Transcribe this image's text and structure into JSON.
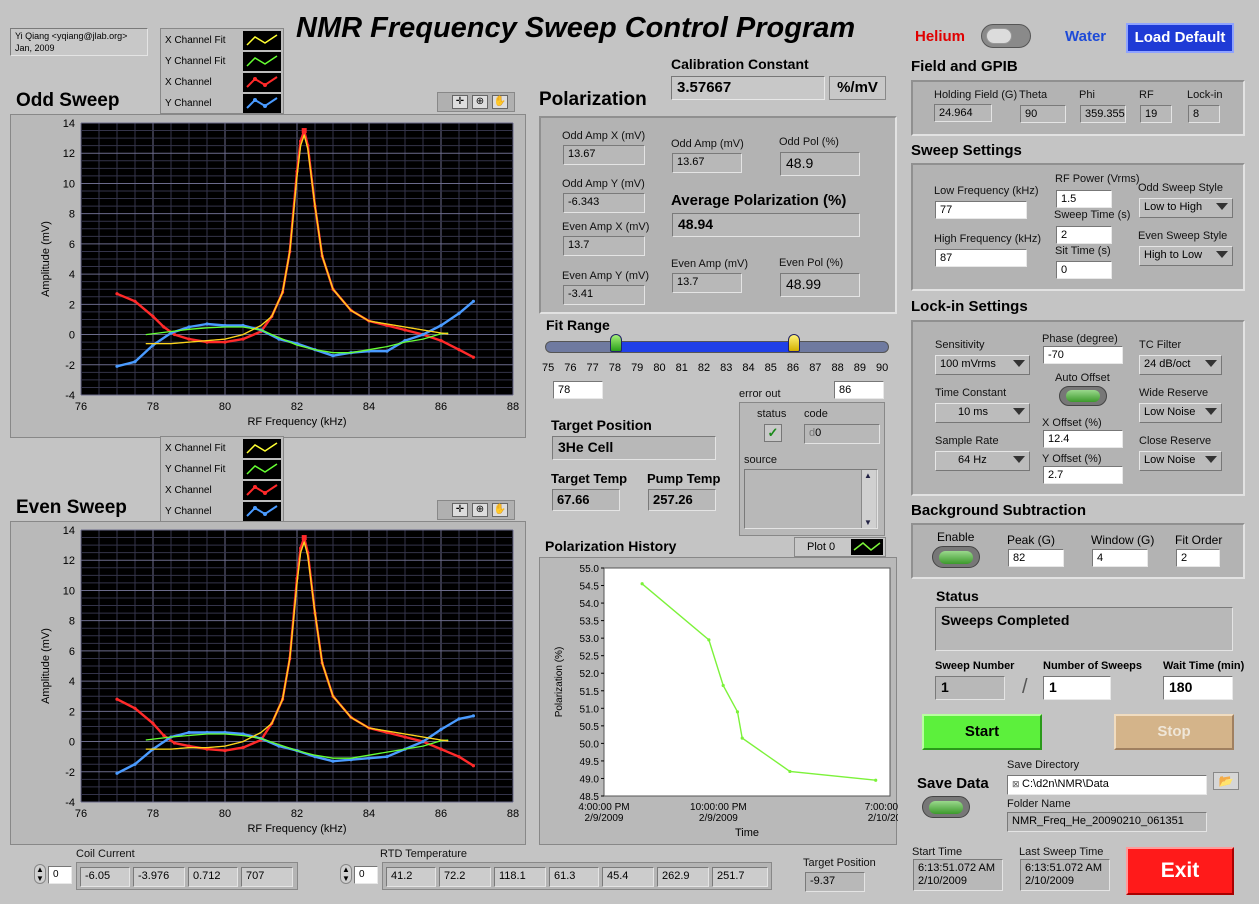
{
  "app": {
    "title": "NMR Frequency Sweep Control Program",
    "author": "Yi Qiang <yqiang@jlab.org>",
    "date": "Jan, 2009",
    "helium_label": "Helium",
    "water_label": "Water",
    "load_default": "Load Default"
  },
  "odd_sweep": {
    "title": "Odd Sweep",
    "legend": [
      "X Channel Fit",
      "Y Channel Fit",
      "X Channel",
      "Y Channel"
    ],
    "xlabel": "RF Frequency (kHz)",
    "ylabel": "Amplitude (mV)"
  },
  "even_sweep": {
    "title": "Even Sweep",
    "legend": [
      "X Channel Fit",
      "Y Channel Fit",
      "X Channel",
      "Y Channel"
    ],
    "xlabel": "RF Frequency (kHz)",
    "ylabel": "Amplitude (mV)"
  },
  "calibration": {
    "label": "Calibration Constant",
    "value": "3.57667",
    "unit": "%/mV"
  },
  "polarization": {
    "title": "Polarization",
    "odd_amp_x_label": "Odd Amp X (mV)",
    "odd_amp_x": "13.67",
    "odd_amp_y_label": "Odd Amp Y (mV)",
    "odd_amp_y": "-6.343",
    "even_amp_x_label": "Even Amp X (mV)",
    "even_amp_x": "13.7",
    "even_amp_y_label": "Even Amp Y (mV)",
    "even_amp_y": "-3.41",
    "odd_amp_label": "Odd Amp (mV)",
    "odd_amp": "13.67",
    "odd_pol_label": "Odd Pol (%)",
    "odd_pol": "48.9",
    "avg_label": "Average Polarization (%)",
    "avg": "48.94",
    "even_amp_label": "Even Amp (mV)",
    "even_amp": "13.7",
    "even_pol_label": "Even Pol (%)",
    "even_pol": "48.99"
  },
  "fit_range": {
    "label": "Fit Range",
    "ticks": [
      "75",
      "76",
      "77",
      "78",
      "79",
      "80",
      "81",
      "82",
      "83",
      "84",
      "85",
      "86",
      "87",
      "88",
      "89",
      "90"
    ],
    "low": "78",
    "high": "86",
    "low_value": 78,
    "high_value": 86
  },
  "error_out": {
    "label": "error out",
    "status_label": "status",
    "code_label": "code",
    "code": "0",
    "source_label": "source",
    "status_check": "✓",
    "code_prefix": "d"
  },
  "target": {
    "position_label": "Target Position",
    "position": "3He Cell",
    "temp_label": "Target Temp",
    "temp": "67.66",
    "pump_label": "Pump Temp",
    "pump": "257.26"
  },
  "history": {
    "title": "Polarization History",
    "plot_label": "Plot 0",
    "ylabel": "Polarization (%)",
    "xlabel": "Time",
    "yticks": [
      "55.0",
      "54.5",
      "54.0",
      "53.5",
      "53.0",
      "52.5",
      "52.0",
      "51.5",
      "51.0",
      "50.5",
      "50.0",
      "49.5",
      "49.0",
      "48.5"
    ],
    "xticks": [
      {
        "time": "4:00:00 PM",
        "date": "2/9/2009"
      },
      {
        "time": "10:00:00 PM",
        "date": "2/9/2009"
      },
      {
        "time": "7:00:00 AM",
        "date": "2/10/2009"
      }
    ]
  },
  "field_gpib": {
    "title": "Field and GPIB",
    "holding_label": "Holding Field (G)",
    "holding": "24.964",
    "theta_label": "Theta",
    "theta": "90",
    "phi_label": "Phi",
    "phi": "359.355",
    "rf_label": "RF",
    "rf": "19",
    "lockin_label": "Lock-in",
    "lockin": "8"
  },
  "sweep_settings": {
    "title": "Sweep Settings",
    "low_label": "Low Frequency (kHz)",
    "low": "77",
    "high_label": "High Frequency (kHz)",
    "high": "87",
    "rf_power_label": "RF Power (Vrms)",
    "rf_power": "1.5",
    "sweep_time_label": "Sweep Time (s)",
    "sweep_time": "2",
    "sit_time_label": "Sit Time (s)",
    "sit_time": "0",
    "odd_style_label": "Odd Sweep Style",
    "odd_style": "Low to High",
    "even_style_label": "Even Sweep Style",
    "even_style": "High to Low"
  },
  "lockin": {
    "title": "Lock-in Settings",
    "sensitivity_label": "Sensitivity",
    "sensitivity": "100 mVrms",
    "phase_label": "Phase (degree)",
    "phase": "-70",
    "tc_filter_label": "TC Filter",
    "tc_filter": "24 dB/oct",
    "auto_offset_label": "Auto Offset",
    "time_const_label": "Time Constant",
    "time_const": "10 ms",
    "x_offset_label": "X Offset (%)",
    "x_offset": "12.4",
    "wide_label": "Wide Reserve",
    "wide": "Low Noise",
    "sample_rate_label": "Sample Rate",
    "sample_rate": "64 Hz",
    "y_offset_label": "Y Offset (%)",
    "y_offset": "2.7",
    "close_label": "Close Reserve",
    "close": "Low Noise"
  },
  "background": {
    "title": "Background Subtraction",
    "enable_label": "Enable",
    "peak_label": "Peak (G)",
    "peak": "82",
    "window_label": "Window (G)",
    "window": "4",
    "fit_order_label": "Fit Order",
    "fit_order": "2"
  },
  "status": {
    "label": "Status",
    "text": "Sweeps Completed",
    "sweep_num_label": "Sweep Number",
    "sweep_num": "1",
    "num_sweeps_label": "Number of Sweeps",
    "num_sweeps": "1",
    "wait_label": "Wait Time (min)",
    "wait": "180",
    "start": "Start",
    "stop": "Stop"
  },
  "save": {
    "label": "Save Data",
    "dir_label": "Save Directory",
    "dir": "C:\\d2n\\NMR\\Data",
    "folder_label": "Folder Name",
    "folder": "NMR_Freq_He_20090210_061351"
  },
  "times": {
    "start_label": "Start Time",
    "start_time": "6:13:51.072 AM",
    "start_date": "2/10/2009",
    "last_label": "Last Sweep Time",
    "last_time": "6:13:51.072 AM",
    "last_date": "2/10/2009"
  },
  "exit": "Exit",
  "coil": {
    "label": "Coil Current",
    "index": "0",
    "values": [
      "-6.05",
      "-3.976",
      "0.712",
      "707"
    ]
  },
  "rtd": {
    "label": "RTD Temperature",
    "index": "0",
    "values": [
      "41.2",
      "72.2",
      "118.1",
      "61.3",
      "45.4",
      "262.9",
      "251.7"
    ]
  },
  "target_position_bottom": {
    "label": "Target Position",
    "value": "-9.37"
  },
  "colors": {
    "x_fit": "#ffff33",
    "y_fit": "#66ff33",
    "x_channel": "#ff2a2a",
    "y_channel": "#4a9bff",
    "fit_overlay": "#ffa500",
    "history_line": "#7cf23a"
  },
  "chart_data": [
    {
      "type": "line",
      "title": "Odd Sweep",
      "xlabel": "RF Frequency (kHz)",
      "ylabel": "Amplitude (mV)",
      "xlim": [
        76,
        88
      ],
      "ylim": [
        -4,
        14
      ],
      "xticks": [
        76,
        78,
        80,
        82,
        84,
        86,
        88
      ],
      "yticks": [
        -4,
        -2,
        0,
        2,
        4,
        6,
        8,
        10,
        12,
        14
      ],
      "grid": true,
      "series": [
        {
          "name": "X Channel Fit",
          "x": [
            77.8,
            78.5,
            79,
            79.5,
            80,
            80.5,
            81,
            81.3,
            81.6,
            81.8,
            82,
            82.1,
            82.2,
            82.3,
            82.5,
            82.7,
            83,
            83.5,
            84,
            85,
            86,
            86.2
          ],
          "y": [
            -0.6,
            -0.6,
            -0.5,
            -0.4,
            -0.3,
            0,
            0.6,
            1.2,
            2.8,
            5.5,
            10.5,
            12.5,
            13.2,
            12.3,
            8.5,
            5.2,
            3,
            1.6,
            0.9,
            0.5,
            0.1,
            0.05
          ]
        },
        {
          "name": "Y Channel Fit",
          "x": [
            77.8,
            78.5,
            79,
            79.5,
            80,
            80.5,
            81,
            81.5,
            82,
            82.5,
            83,
            83.5,
            84,
            84.5,
            85,
            85.5,
            86,
            86.2
          ],
          "y": [
            0,
            0.2,
            0.35,
            0.45,
            0.5,
            0.5,
            0.3,
            -0.2,
            -0.7,
            -1.0,
            -1.2,
            -1.2,
            -1.0,
            -0.8,
            -0.5,
            -0.3,
            0.05,
            0.1
          ]
        },
        {
          "name": "X Channel",
          "x": [
            77,
            77.5,
            78,
            78.3,
            78.6,
            79,
            79.5,
            80,
            80.5,
            81,
            81.3,
            81.6,
            81.8,
            82,
            82.1,
            82.2,
            82.3,
            82.5,
            82.7,
            83,
            83.5,
            84,
            84.5,
            85,
            85.5,
            86,
            86.5,
            86.9
          ],
          "y": [
            2.7,
            2.2,
            1.2,
            0.5,
            0,
            -0.3,
            -0.5,
            -0.5,
            -0.3,
            0.2,
            1.2,
            2.8,
            5.5,
            10.8,
            12.8,
            13.5,
            12.5,
            8.5,
            5.2,
            3,
            1.6,
            0.9,
            0.6,
            0.3,
            0,
            -0.4,
            -1.0,
            -1.5
          ]
        },
        {
          "name": "Y Channel",
          "x": [
            77,
            77.5,
            78,
            78.5,
            79,
            79.5,
            80,
            80.5,
            81,
            81.5,
            82,
            82.5,
            83,
            83.5,
            84,
            84.5,
            85,
            85.5,
            86,
            86.5,
            86.9
          ],
          "y": [
            -2.1,
            -1.8,
            -0.7,
            0.1,
            0.5,
            0.7,
            0.6,
            0.6,
            0.3,
            -0.3,
            -0.6,
            -1.0,
            -1.4,
            -1.2,
            -1.1,
            -1.1,
            -0.4,
            0,
            0.6,
            1.4,
            2.2
          ]
        }
      ]
    },
    {
      "type": "line",
      "title": "Even Sweep",
      "xlabel": "RF Frequency (kHz)",
      "ylabel": "Amplitude (mV)",
      "xlim": [
        76,
        88
      ],
      "ylim": [
        -4,
        14
      ],
      "xticks": [
        76,
        78,
        80,
        82,
        84,
        86,
        88
      ],
      "yticks": [
        -4,
        -2,
        0,
        2,
        4,
        6,
        8,
        10,
        12,
        14
      ],
      "grid": true,
      "series": [
        {
          "name": "X Channel Fit",
          "x": [
            77.8,
            78.5,
            79,
            79.5,
            80,
            80.5,
            81,
            81.3,
            81.6,
            81.8,
            82,
            82.1,
            82.2,
            82.3,
            82.5,
            82.7,
            83,
            83.5,
            84,
            85,
            86,
            86.2
          ],
          "y": [
            -0.5,
            -0.5,
            -0.4,
            -0.4,
            -0.3,
            0,
            0.6,
            1.2,
            2.8,
            5.5,
            10.5,
            12.5,
            13.2,
            12.3,
            8.5,
            5.2,
            3,
            1.6,
            0.9,
            0.5,
            0.1,
            0.05
          ]
        },
        {
          "name": "Y Channel Fit",
          "x": [
            77.8,
            78.5,
            79,
            79.5,
            80,
            80.5,
            81,
            81.5,
            82,
            82.5,
            83,
            83.5,
            84,
            84.5,
            85,
            85.5,
            86,
            86.2
          ],
          "y": [
            0.1,
            0.3,
            0.4,
            0.5,
            0.5,
            0.4,
            0.2,
            -0.2,
            -0.6,
            -0.9,
            -1.1,
            -1.1,
            -0.9,
            -0.7,
            -0.5,
            -0.3,
            0.05,
            0.1
          ]
        },
        {
          "name": "X Channel",
          "x": [
            77,
            77.5,
            78,
            78.3,
            78.6,
            79,
            79.5,
            80,
            80.5,
            81,
            81.3,
            81.6,
            81.8,
            82,
            82.1,
            82.2,
            82.3,
            82.5,
            82.7,
            83,
            83.5,
            84,
            84.5,
            85,
            85.5,
            86,
            86.5,
            86.9
          ],
          "y": [
            2.8,
            2.2,
            1.2,
            0.4,
            -0.1,
            -0.3,
            -0.5,
            -0.6,
            -0.4,
            0.1,
            1.2,
            2.8,
            5.5,
            10.8,
            12.8,
            13.5,
            12.5,
            8.5,
            5.2,
            3,
            1.6,
            0.9,
            0.6,
            0.3,
            0,
            -0.5,
            -1.0,
            -1.6
          ]
        },
        {
          "name": "Y Channel",
          "x": [
            77,
            77.5,
            78,
            78.5,
            79,
            79.5,
            80,
            80.5,
            81,
            81.5,
            82,
            82.5,
            83,
            83.5,
            84,
            84.5,
            85,
            85.5,
            86,
            86.5,
            86.9
          ],
          "y": [
            -2.1,
            -1.5,
            -0.5,
            0.3,
            0.6,
            0.6,
            0.6,
            0.5,
            0.2,
            -0.3,
            -0.6,
            -1.0,
            -1.3,
            -1.2,
            -1.1,
            -1.0,
            -0.5,
            0,
            0.8,
            1.5,
            1.7
          ]
        }
      ]
    },
    {
      "type": "line",
      "title": "Polarization History",
      "xlabel": "Time",
      "ylabel": "Polarization (%)",
      "ylim": [
        48.5,
        55.0
      ],
      "yticks": [
        55.0,
        54.5,
        54.0,
        53.5,
        53.0,
        52.5,
        52.0,
        51.5,
        51.0,
        50.5,
        50.0,
        49.5,
        49.0,
        48.5
      ],
      "xticks": [
        "2/9/2009 4:00:00 PM",
        "2/9/2009 10:00:00 PM",
        "2/10/2009 7:00:00 AM"
      ],
      "series": [
        {
          "name": "Plot 0",
          "x": [
            "2/9/2009 6:00 PM",
            "2/9/2009 9:30 PM",
            "2/9/2009 10:15 PM",
            "2/9/2009 11:00 PM",
            "2/9/2009 11:15 PM",
            "2/10/2009 1:45 AM",
            "2/10/2009 6:15 AM"
          ],
          "y": [
            54.55,
            52.95,
            51.65,
            50.9,
            50.15,
            49.2,
            48.95
          ]
        }
      ]
    }
  ]
}
